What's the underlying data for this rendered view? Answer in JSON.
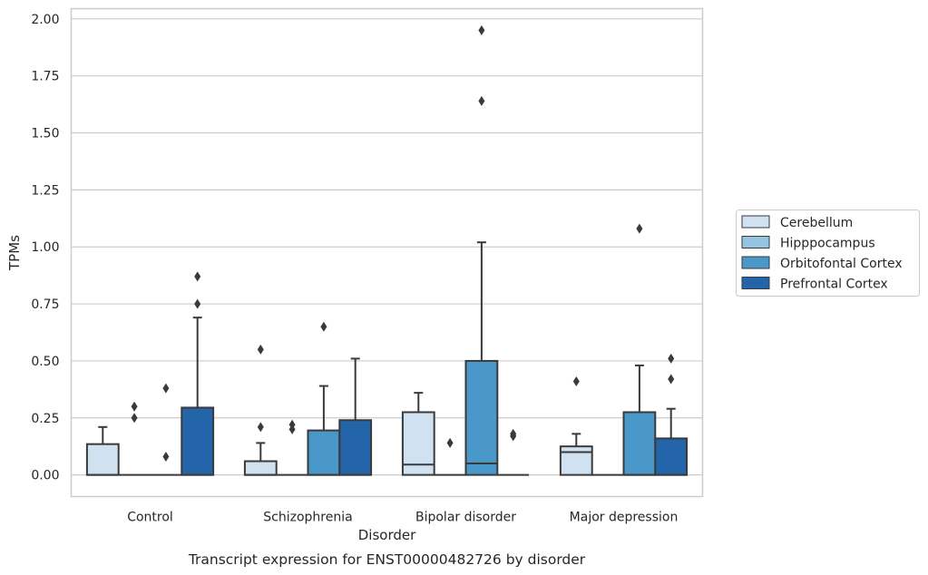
{
  "chart_data": {
    "type": "box",
    "caption": "Transcript expression for ENST00000482726 by disorder",
    "xlabel": "Disorder",
    "ylabel": "TPMs",
    "ylim": [
      -0.095,
      2.045
    ],
    "yticks": [
      0.0,
      0.25,
      0.5,
      0.75,
      1.0,
      1.25,
      1.5,
      1.75,
      2.0
    ],
    "ytick_labels": [
      "0.00",
      "0.25",
      "0.50",
      "0.75",
      "1.00",
      "1.25",
      "1.50",
      "1.75",
      "2.00"
    ],
    "grid": true,
    "legend_position": "outside-right",
    "categories": [
      "Control",
      "Schizophrenia",
      "Bipolar disorder",
      "Major depression"
    ],
    "series": [
      {
        "name": "Cerebellum",
        "color": "#d0e1f2",
        "boxes": [
          {
            "q1": 0.0,
            "median": 0.0,
            "q3": 0.135,
            "whisker_low": 0.0,
            "whisker_high": 0.21,
            "outliers": []
          },
          {
            "q1": 0.0,
            "median": 0.0,
            "q3": 0.06,
            "whisker_low": 0.0,
            "whisker_high": 0.14,
            "outliers": [
              0.21,
              0.55
            ]
          },
          {
            "q1": 0.0,
            "median": 0.045,
            "q3": 0.275,
            "whisker_low": 0.0,
            "whisker_high": 0.36,
            "outliers": []
          },
          {
            "q1": 0.0,
            "median": 0.1,
            "q3": 0.125,
            "whisker_low": 0.0,
            "whisker_high": 0.18,
            "outliers": [
              0.41
            ]
          }
        ]
      },
      {
        "name": "Hipppocampus",
        "color": "#94c4df",
        "boxes": [
          {
            "q1": 0.0,
            "median": 0.0,
            "q3": 0.0,
            "whisker_low": 0.0,
            "whisker_high": 0.0,
            "outliers": [
              0.25,
              0.3
            ]
          },
          {
            "q1": 0.0,
            "median": 0.0,
            "q3": 0.0,
            "whisker_low": 0.0,
            "whisker_high": 0.0,
            "outliers": [
              0.2,
              0.22
            ]
          },
          {
            "q1": 0.0,
            "median": 0.0,
            "q3": 0.0,
            "whisker_low": 0.0,
            "whisker_high": 0.0,
            "outliers": [
              0.14
            ]
          },
          {
            "q1": 0.0,
            "median": 0.0,
            "q3": 0.0,
            "whisker_low": 0.0,
            "whisker_high": 0.0,
            "outliers": []
          }
        ]
      },
      {
        "name": "Orbitofontal Cortex",
        "color": "#4a98c9",
        "boxes": [
          {
            "q1": 0.0,
            "median": 0.0,
            "q3": 0.0,
            "whisker_low": 0.0,
            "whisker_high": 0.0,
            "outliers": [
              0.08,
              0.38
            ]
          },
          {
            "q1": 0.0,
            "median": 0.0,
            "q3": 0.195,
            "whisker_low": 0.0,
            "whisker_high": 0.39,
            "outliers": [
              0.65
            ]
          },
          {
            "q1": 0.0,
            "median": 0.05,
            "q3": 0.5,
            "whisker_low": 0.0,
            "whisker_high": 1.02,
            "outliers": [
              1.64,
              1.95
            ]
          },
          {
            "q1": 0.0,
            "median": 0.0,
            "q3": 0.275,
            "whisker_low": 0.0,
            "whisker_high": 0.48,
            "outliers": [
              1.08
            ]
          }
        ]
      },
      {
        "name": "Prefrontal Cortex",
        "color": "#2464a8",
        "boxes": [
          {
            "q1": 0.0,
            "median": 0.0,
            "q3": 0.295,
            "whisker_low": 0.0,
            "whisker_high": 0.69,
            "outliers": [
              0.75,
              0.87
            ]
          },
          {
            "q1": 0.0,
            "median": 0.0,
            "q3": 0.24,
            "whisker_low": 0.0,
            "whisker_high": 0.51,
            "outliers": []
          },
          {
            "q1": 0.0,
            "median": 0.0,
            "q3": 0.0,
            "whisker_low": 0.0,
            "whisker_high": 0.0,
            "outliers": [
              0.17,
              0.18
            ]
          },
          {
            "q1": 0.0,
            "median": 0.0,
            "q3": 0.16,
            "whisker_low": 0.0,
            "whisker_high": 0.29,
            "outliers": [
              0.42,
              0.51
            ]
          }
        ]
      }
    ]
  }
}
